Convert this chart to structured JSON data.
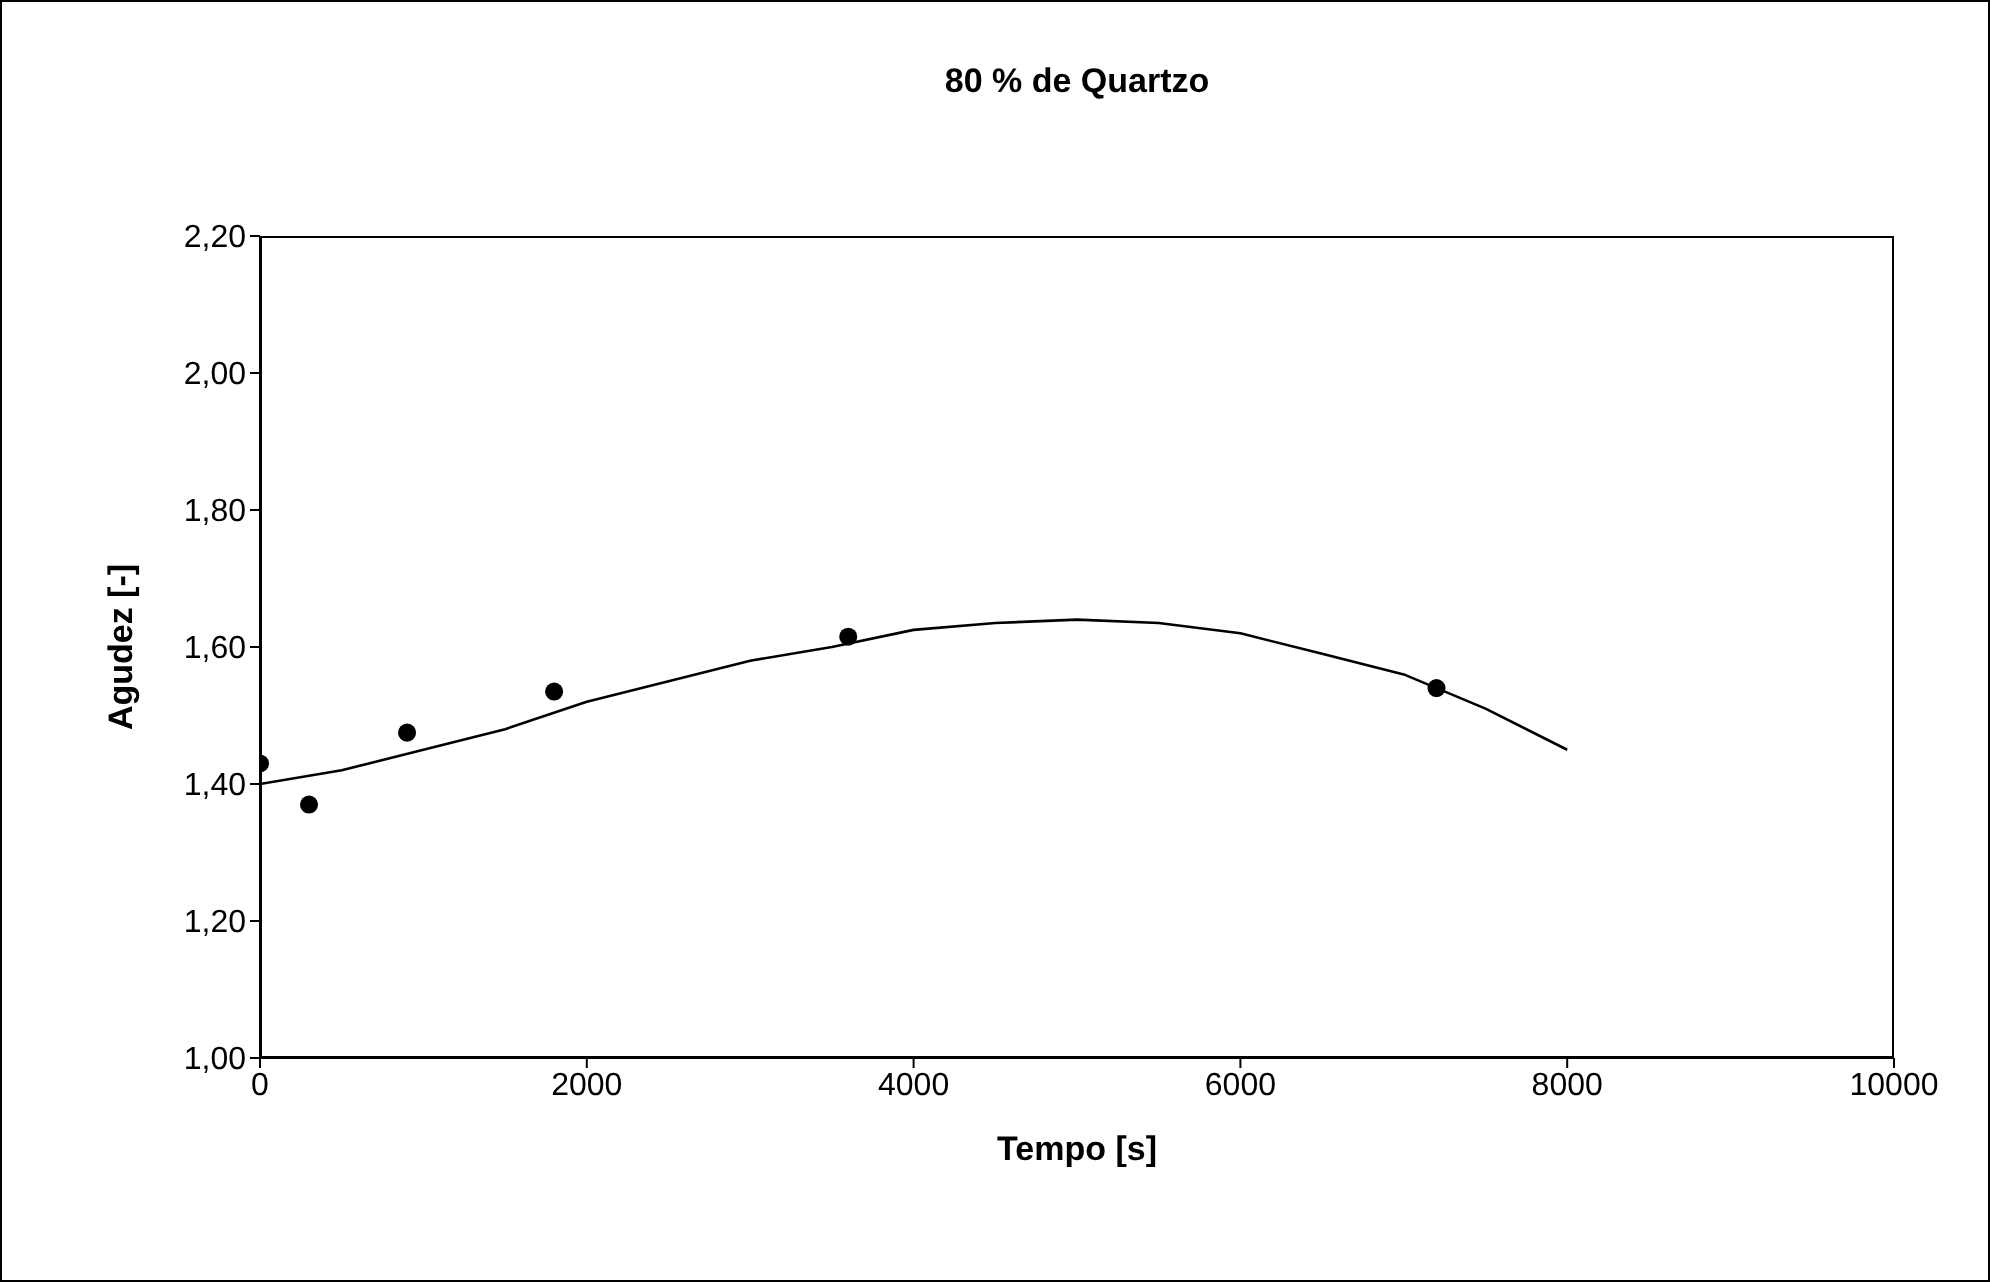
{
  "chart_data": {
    "type": "scatter",
    "title": "80 % de Quartzo",
    "xlabel": "Tempo [s]",
    "ylabel": "Agudez [-]",
    "x": [
      0,
      300,
      900,
      1800,
      3600,
      7200
    ],
    "series": [
      {
        "color": "#000000",
        "marker": "circle",
        "values": [
          1.43,
          1.37,
          1.475,
          1.535,
          1.615,
          1.54
        ]
      },
      {
        "type": "line",
        "color": "#000000",
        "marker": "none",
        "line_style": "solid",
        "x": [
          0,
          500,
          1000,
          1500,
          2000,
          2500,
          3000,
          3500,
          4000,
          4500,
          5000,
          5500,
          6000,
          6500,
          7000,
          7500,
          8000
        ],
        "values": [
          1.4,
          1.42,
          1.45,
          1.48,
          1.52,
          1.55,
          1.58,
          1.6,
          1.625,
          1.635,
          1.64,
          1.635,
          1.62,
          1.59,
          1.56,
          1.51,
          1.45
        ]
      }
    ],
    "xlim": [
      0,
      10000
    ],
    "xticks": [
      0,
      2000,
      4000,
      6000,
      8000,
      10000
    ],
    "ylim": [
      1,
      2.2
    ],
    "yticks": [
      {
        "value": 1,
        "label": "1,00"
      },
      {
        "value": 1.2,
        "label": "1,20"
      },
      {
        "value": 1.4,
        "label": "1,40"
      },
      {
        "value": 1.6,
        "label": "1,60"
      },
      {
        "value": 1.8,
        "label": "1,80"
      },
      {
        "value": 2,
        "label": "2,00"
      },
      {
        "value": 2.2,
        "label": "2,20"
      }
    ],
    "grid": false
  }
}
